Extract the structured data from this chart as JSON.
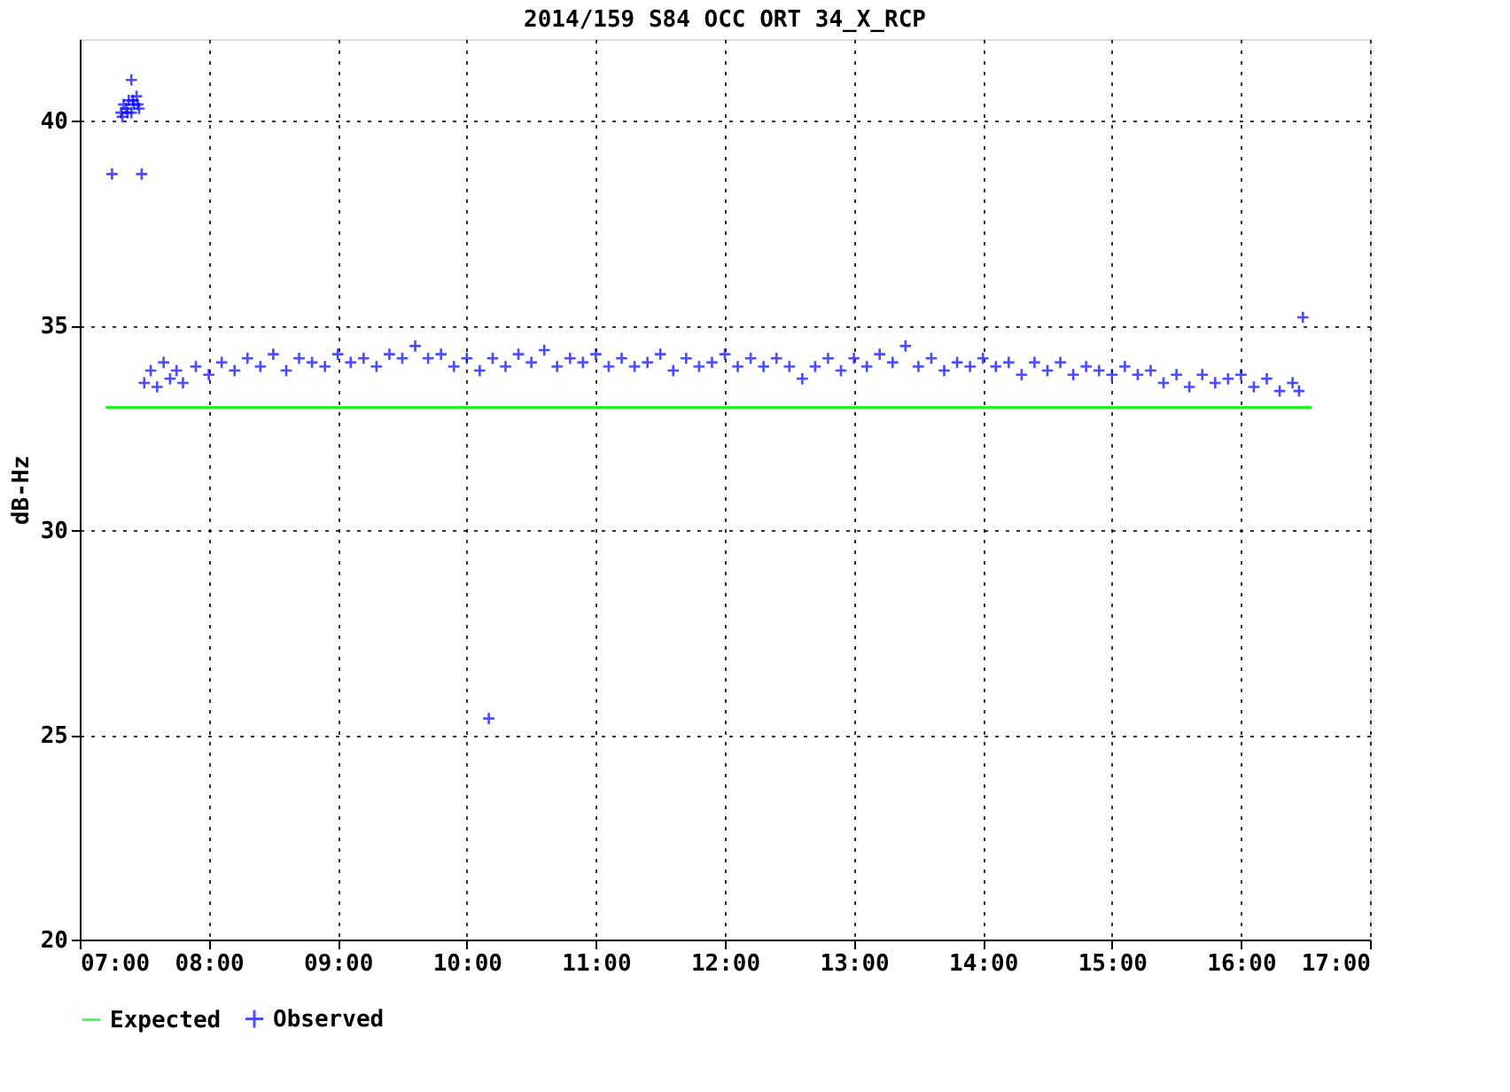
{
  "chart_data": {
    "type": "scatter",
    "title": "2014/159 S84 OCC ORT 34_X_RCP",
    "ylabel": "dB-Hz",
    "xlim": [
      7,
      17
    ],
    "ylim": [
      20,
      42
    ],
    "xticks": [
      {
        "value": 7,
        "label": "07:00"
      },
      {
        "value": 8,
        "label": "08:00"
      },
      {
        "value": 9,
        "label": "09:00"
      },
      {
        "value": 10,
        "label": "10:00"
      },
      {
        "value": 11,
        "label": "11:00"
      },
      {
        "value": 12,
        "label": "12:00"
      },
      {
        "value": 13,
        "label": "13:00"
      },
      {
        "value": 14,
        "label": "14:00"
      },
      {
        "value": 15,
        "label": "15:00"
      },
      {
        "value": 16,
        "label": "16:00"
      },
      {
        "value": 17,
        "label": "17:00"
      }
    ],
    "yticks": [
      20,
      25,
      30,
      35,
      40
    ],
    "grid": true,
    "legend": "bottom",
    "series": [
      {
        "name": "Expected",
        "type": "line",
        "color": "#00ff00",
        "marker": "none",
        "x": [
          7.2,
          16.55
        ],
        "values": [
          33,
          33
        ]
      },
      {
        "name": "Observed",
        "color": "#0000ff",
        "marker": "cross",
        "x": [
          7.25,
          7.48,
          7.4,
          7.32,
          7.34,
          7.36,
          7.38,
          7.4,
          7.42,
          7.44,
          7.46,
          7.33,
          7.37,
          7.41,
          7.45,
          10.17,
          16.48,
          7.5,
          7.55,
          7.6,
          7.65,
          7.7,
          7.75,
          7.8,
          7.9,
          8.0,
          8.1,
          8.2,
          8.3,
          8.4,
          8.5,
          8.6,
          8.7,
          8.8,
          8.9,
          9.0,
          9.1,
          9.2,
          9.3,
          9.4,
          9.5,
          9.6,
          9.7,
          9.8,
          9.9,
          10.0,
          10.1,
          10.2,
          10.3,
          10.4,
          10.5,
          10.6,
          10.7,
          10.8,
          10.9,
          11.0,
          11.1,
          11.2,
          11.3,
          11.4,
          11.5,
          11.6,
          11.7,
          11.8,
          11.9,
          12.0,
          12.1,
          12.2,
          12.3,
          12.4,
          12.5,
          12.6,
          12.7,
          12.8,
          12.9,
          13.0,
          13.1,
          13.2,
          13.3,
          13.4,
          13.5,
          13.6,
          13.7,
          13.8,
          13.9,
          14.0,
          14.1,
          14.2,
          14.3,
          14.4,
          14.5,
          14.6,
          14.7,
          14.8,
          14.9,
          15.0,
          15.1,
          15.2,
          15.3,
          15.4,
          15.5,
          15.6,
          15.7,
          15.8,
          15.9,
          16.0,
          16.1,
          16.2,
          16.3,
          16.4,
          16.45
        ],
        "values": [
          38.7,
          38.7,
          41.0,
          40.2,
          40.4,
          40.3,
          40.5,
          40.2,
          40.4,
          40.6,
          40.3,
          40.1,
          40.2,
          40.5,
          40.4,
          25.4,
          35.2,
          33.6,
          33.9,
          33.5,
          34.1,
          33.7,
          33.9,
          33.6,
          34.0,
          33.8,
          34.1,
          33.9,
          34.2,
          34.0,
          34.3,
          33.9,
          34.2,
          34.1,
          34.0,
          34.3,
          34.1,
          34.2,
          34.0,
          34.3,
          34.2,
          34.5,
          34.2,
          34.3,
          34.0,
          34.2,
          33.9,
          34.2,
          34.0,
          34.3,
          34.1,
          34.4,
          34.0,
          34.2,
          34.1,
          34.3,
          34.0,
          34.2,
          34.0,
          34.1,
          34.3,
          33.9,
          34.2,
          34.0,
          34.1,
          34.3,
          34.0,
          34.2,
          34.0,
          34.2,
          34.0,
          33.7,
          34.0,
          34.2,
          33.9,
          34.2,
          34.0,
          34.3,
          34.1,
          34.5,
          34.0,
          34.2,
          33.9,
          34.1,
          34.0,
          34.2,
          34.0,
          34.1,
          33.8,
          34.1,
          33.9,
          34.1,
          33.8,
          34.0,
          33.9,
          33.8,
          34.0,
          33.8,
          33.9,
          33.6,
          33.8,
          33.5,
          33.8,
          33.6,
          33.7,
          33.8,
          33.5,
          33.7,
          33.4,
          33.6,
          33.4
        ]
      }
    ]
  }
}
